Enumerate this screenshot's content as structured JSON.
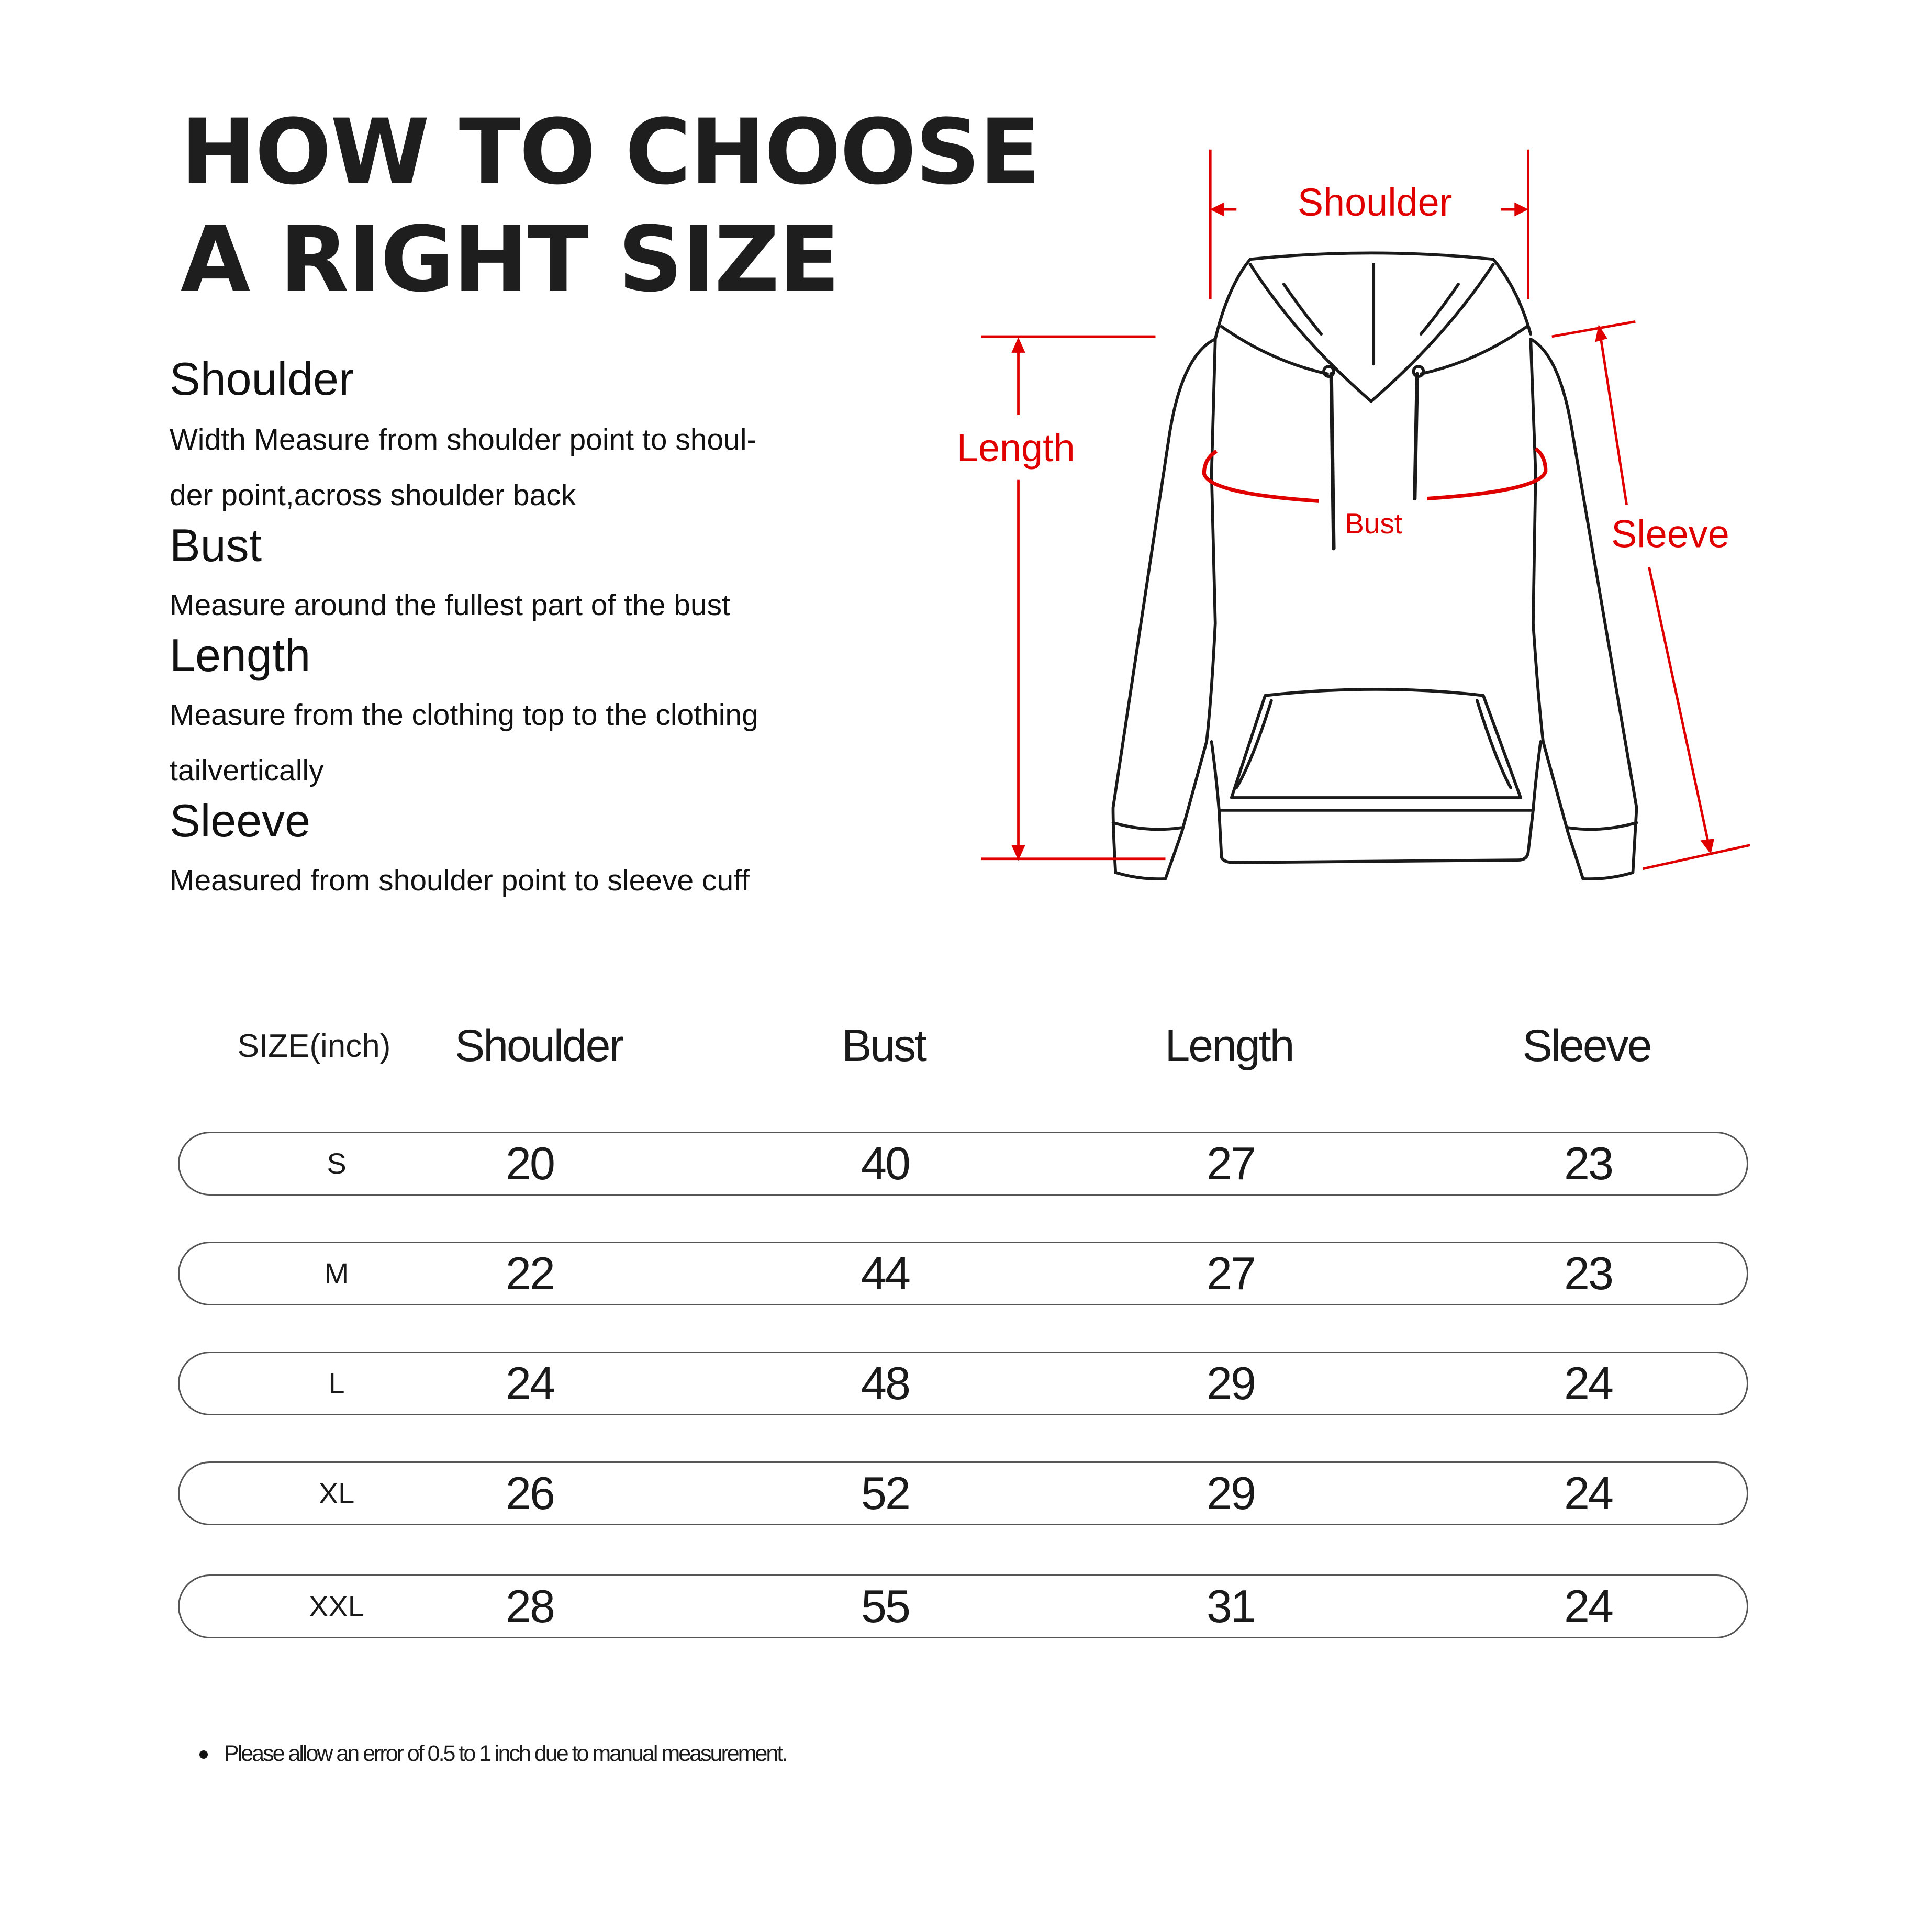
{
  "title": {
    "line1": "HOW TO CHOOSE",
    "line2": "A RIGHT SIZE"
  },
  "guide": [
    {
      "heading": "Shoulder",
      "lines": [
        "Width Measure from shoulder point to shoul-",
        "der point,across shoulder back"
      ]
    },
    {
      "heading": "Bust",
      "lines": [
        "Measure around the fullest part of the bust"
      ]
    },
    {
      "heading": "Length",
      "lines": [
        "Measure from the clothing top to the clothing",
        "tailvertically"
      ]
    },
    {
      "heading": "Sleeve",
      "lines": [
        "Measured from shoulder point to sleeve cuff"
      ]
    }
  ],
  "diagram": {
    "labels": {
      "shoulder": "Shoulder",
      "length": "Length",
      "bust": "Bust",
      "sleeve": "Sleeve"
    },
    "accent_color": "#e00000",
    "outline_color": "#1a1a1a"
  },
  "table": {
    "headers": [
      "SIZE(inch)",
      "Shoulder",
      "Bust",
      "Length",
      "Sleeve"
    ],
    "rows": [
      [
        "S",
        "20",
        "40",
        "27",
        "23"
      ],
      [
        "M",
        "22",
        "44",
        "27",
        "23"
      ],
      [
        "L",
        "24",
        "48",
        "29",
        "24"
      ],
      [
        "XL",
        "26",
        "52",
        "29",
        "24"
      ],
      [
        "XXL",
        "28",
        "55",
        "31",
        "24"
      ]
    ]
  },
  "footnote": "Please allow an error of 0.5 to 1 inch due to manual measurement."
}
